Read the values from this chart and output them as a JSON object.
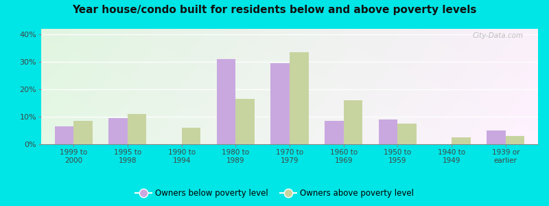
{
  "title": "Year house/condo built for residents below and above poverty levels",
  "categories": [
    "1999 to\n2000",
    "1995 to\n1998",
    "1990 to\n1994",
    "1980 to\n1989",
    "1970 to\n1979",
    "1960 to\n1969",
    "1950 to\n1959",
    "1940 to\n1949",
    "1939 or\nearlier"
  ],
  "below_poverty": [
    6.5,
    9.5,
    0.0,
    31.0,
    29.5,
    8.5,
    9.0,
    0.0,
    5.0
  ],
  "above_poverty": [
    8.5,
    11.0,
    6.0,
    16.5,
    33.5,
    16.0,
    7.5,
    2.5,
    3.0
  ],
  "below_color": "#c9a8e0",
  "above_color": "#c8d4a0",
  "bar_width": 0.35,
  "ylim": [
    0,
    42
  ],
  "yticks": [
    0,
    10,
    20,
    30,
    40
  ],
  "ytick_labels": [
    "0%",
    "10%",
    "20%",
    "30%",
    "40%"
  ],
  "bg_color_top_left": "#d5f0d5",
  "bg_color_right": "#f0f8e8",
  "bg_color_bottom": "#eafaea",
  "outer_bg": "#00e5e5",
  "plot_bg": "#e0f0e0",
  "legend_below_label": "Owners below poverty level",
  "legend_above_label": "Owners above poverty level",
  "watermark": "City-Data.com",
  "title_fontsize": 11,
  "tick_fontsize": 7.5,
  "legend_fontsize": 8.5
}
